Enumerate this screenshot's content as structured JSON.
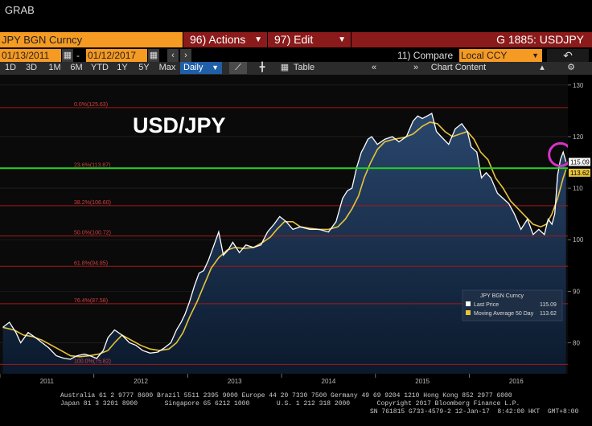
{
  "window": {
    "title": "GRAB"
  },
  "toolbar": {
    "security": "JPY BGN Curncy",
    "actions": "96) Actions",
    "edit": "97) Edit",
    "ticker": "G 1885: USDJPY",
    "start_date": "01/13/2011",
    "end_date": "01/12/2017",
    "compare_label": "11) Compare",
    "compare_value": "Local CCY",
    "periods": [
      "1D",
      "3D",
      "1M",
      "6M",
      "YTD",
      "1Y",
      "5Y",
      "Max"
    ],
    "frequency": "Daily",
    "table_label": "Table",
    "chart_content_label": "Chart Content"
  },
  "chart_data": {
    "type": "line",
    "title": "USD/JPY",
    "x_labels": [
      "2011",
      "2012",
      "2013",
      "2014",
      "2015",
      "2016"
    ],
    "y_ticks": [
      80,
      90,
      100,
      110,
      120,
      130
    ],
    "ylim": [
      74,
      132
    ],
    "price_label": "115.09",
    "ma_label": "113.62",
    "fib_levels": [
      {
        "label": "0.0%(125.63)",
        "value": 125.63
      },
      {
        "label": "23.6%(113.87)",
        "value": 113.87
      },
      {
        "label": "38.2%(106.60)",
        "value": 106.6
      },
      {
        "label": "50.0%(100.72)",
        "value": 100.72
      },
      {
        "label": "61.8%(94.85)",
        "value": 94.85
      },
      {
        "label": "76.4%(87.58)",
        "value": 87.58
      },
      {
        "label": "100.0%(75.82)",
        "value": 75.82
      }
    ],
    "legend": {
      "header": "JPY BGN Curncy",
      "items": [
        {
          "name": "Last Price",
          "value": "115.09",
          "color": "#ffffff"
        },
        {
          "name": "Moving Average 50 Day",
          "value": "113.62",
          "color": "#e8c33a"
        }
      ]
    },
    "series": [
      {
        "name": "Last Price",
        "color": "#ffffff",
        "x": [
          2011.03,
          2011.1,
          2011.17,
          2011.22,
          2011.3,
          2011.38,
          2011.45,
          2011.52,
          2011.6,
          2011.68,
          2011.75,
          2011.82,
          2011.9,
          2011.96,
          2012.03,
          2012.1,
          2012.15,
          2012.22,
          2012.3,
          2012.38,
          2012.45,
          2012.52,
          2012.6,
          2012.68,
          2012.75,
          2012.82,
          2012.88,
          2012.93,
          2012.97,
          2013.02,
          2013.07,
          2013.12,
          2013.17,
          2013.22,
          2013.28,
          2013.33,
          2013.38,
          2013.43,
          2013.48,
          2013.55,
          2013.62,
          2013.7,
          2013.78,
          2013.85,
          2013.92,
          2013.98,
          2014.05,
          2014.12,
          2014.2,
          2014.3,
          2014.4,
          2014.5,
          2014.58,
          2014.65,
          2014.7,
          2014.75,
          2014.8,
          2014.85,
          2014.88,
          2014.92,
          2014.96,
          2015.02,
          2015.1,
          2015.18,
          2015.25,
          2015.33,
          2015.4,
          2015.45,
          2015.5,
          2015.55,
          2015.6,
          2015.65,
          2015.7,
          2015.78,
          2015.85,
          2015.92,
          2015.98,
          2016.02,
          2016.08,
          2016.13,
          2016.18,
          2016.23,
          2016.3,
          2016.36,
          2016.42,
          2016.48,
          2016.55,
          2016.62,
          2016.68,
          2016.74,
          2016.8,
          2016.84,
          2016.88,
          2016.91,
          2016.94,
          2016.97,
          2017.0,
          2017.03
        ],
        "y": [
          83,
          84,
          82,
          80,
          82,
          81,
          80,
          79,
          77.5,
          77,
          76.8,
          77.5,
          77.8,
          77.5,
          77,
          78.5,
          81,
          82.5,
          81.5,
          80,
          79.5,
          78.5,
          78,
          78.2,
          79,
          80,
          82.5,
          84,
          85.5,
          88,
          91,
          93.5,
          94,
          96,
          99,
          101.5,
          97,
          98,
          99.5,
          97.5,
          99,
          98.5,
          99,
          101.5,
          103,
          104.5,
          103.5,
          102,
          102.5,
          102,
          102,
          101.5,
          103.5,
          108,
          109.5,
          110,
          114,
          117,
          118,
          119.5,
          120,
          118.5,
          119.5,
          120,
          119,
          120,
          123,
          124,
          123.5,
          124,
          124.5,
          121,
          120,
          118.5,
          121.5,
          122.5,
          121,
          118,
          117,
          112,
          113,
          112,
          109,
          108,
          107,
          105,
          102,
          104,
          101,
          102,
          101,
          104,
          103,
          105,
          112.5,
          115.5,
          117,
          115.09
        ]
      },
      {
        "name": "Moving Average 50 Day",
        "color": "#e8c33a",
        "x": [
          2011.03,
          2011.15,
          2011.25,
          2011.35,
          2011.45,
          2011.55,
          2011.65,
          2011.75,
          2011.85,
          2011.95,
          2012.05,
          2012.15,
          2012.22,
          2012.3,
          2012.4,
          2012.5,
          2012.6,
          2012.7,
          2012.8,
          2012.88,
          2012.95,
          2013.02,
          2013.1,
          2013.18,
          2013.25,
          2013.33,
          2013.42,
          2013.5,
          2013.6,
          2013.7,
          2013.8,
          2013.88,
          2013.95,
          2014.03,
          2014.12,
          2014.2,
          2014.3,
          2014.4,
          2014.5,
          2014.6,
          2014.68,
          2014.75,
          2014.82,
          2014.88,
          2014.95,
          2015.02,
          2015.1,
          2015.2,
          2015.3,
          2015.4,
          2015.5,
          2015.58,
          2015.66,
          2015.74,
          2015.82,
          2015.9,
          2015.98,
          2016.05,
          2016.12,
          2016.2,
          2016.28,
          2016.36,
          2016.44,
          2016.52,
          2016.6,
          2016.68,
          2016.76,
          2016.82,
          2016.88,
          2016.94,
          2017.0,
          2017.03
        ],
        "y": [
          83,
          82.5,
          81.5,
          81.2,
          80.5,
          79.5,
          78.5,
          77.5,
          77.3,
          77.5,
          77.8,
          78.5,
          80,
          81.5,
          80.5,
          79.5,
          78.8,
          78.5,
          78.8,
          80,
          82,
          85,
          88,
          91.5,
          94.5,
          96.5,
          98,
          98.5,
          98.3,
          98.5,
          99.5,
          100.5,
          102,
          103.5,
          103.5,
          102.5,
          102.2,
          102,
          102,
          102.5,
          104,
          106,
          108.5,
          112,
          115,
          117.5,
          119,
          119.5,
          119.8,
          120.5,
          122,
          122.8,
          122.5,
          121,
          120,
          120.5,
          121,
          119.5,
          117,
          115.5,
          112,
          110,
          107.5,
          106,
          104.5,
          103,
          102.5,
          103,
          105,
          108,
          112,
          113.62
        ]
      }
    ]
  },
  "footer": {
    "line1": "Australia 61 2 9777 8600 Brazil 5511 2395 9000 Europe 44 20 7330 7500 Germany 49 69 9204 1210 Hong Kong 852 2977 6000",
    "line2": "Japan 81 3 3201 8900       Singapore 65 6212 1000       U.S. 1 212 318 2000       Copyright 2017 Bloomberg Finance L.P.",
    "line3": "SN 761815 G733-4579-2 12-Jan-17  8:42:00 HKT  GMT+8:00"
  }
}
